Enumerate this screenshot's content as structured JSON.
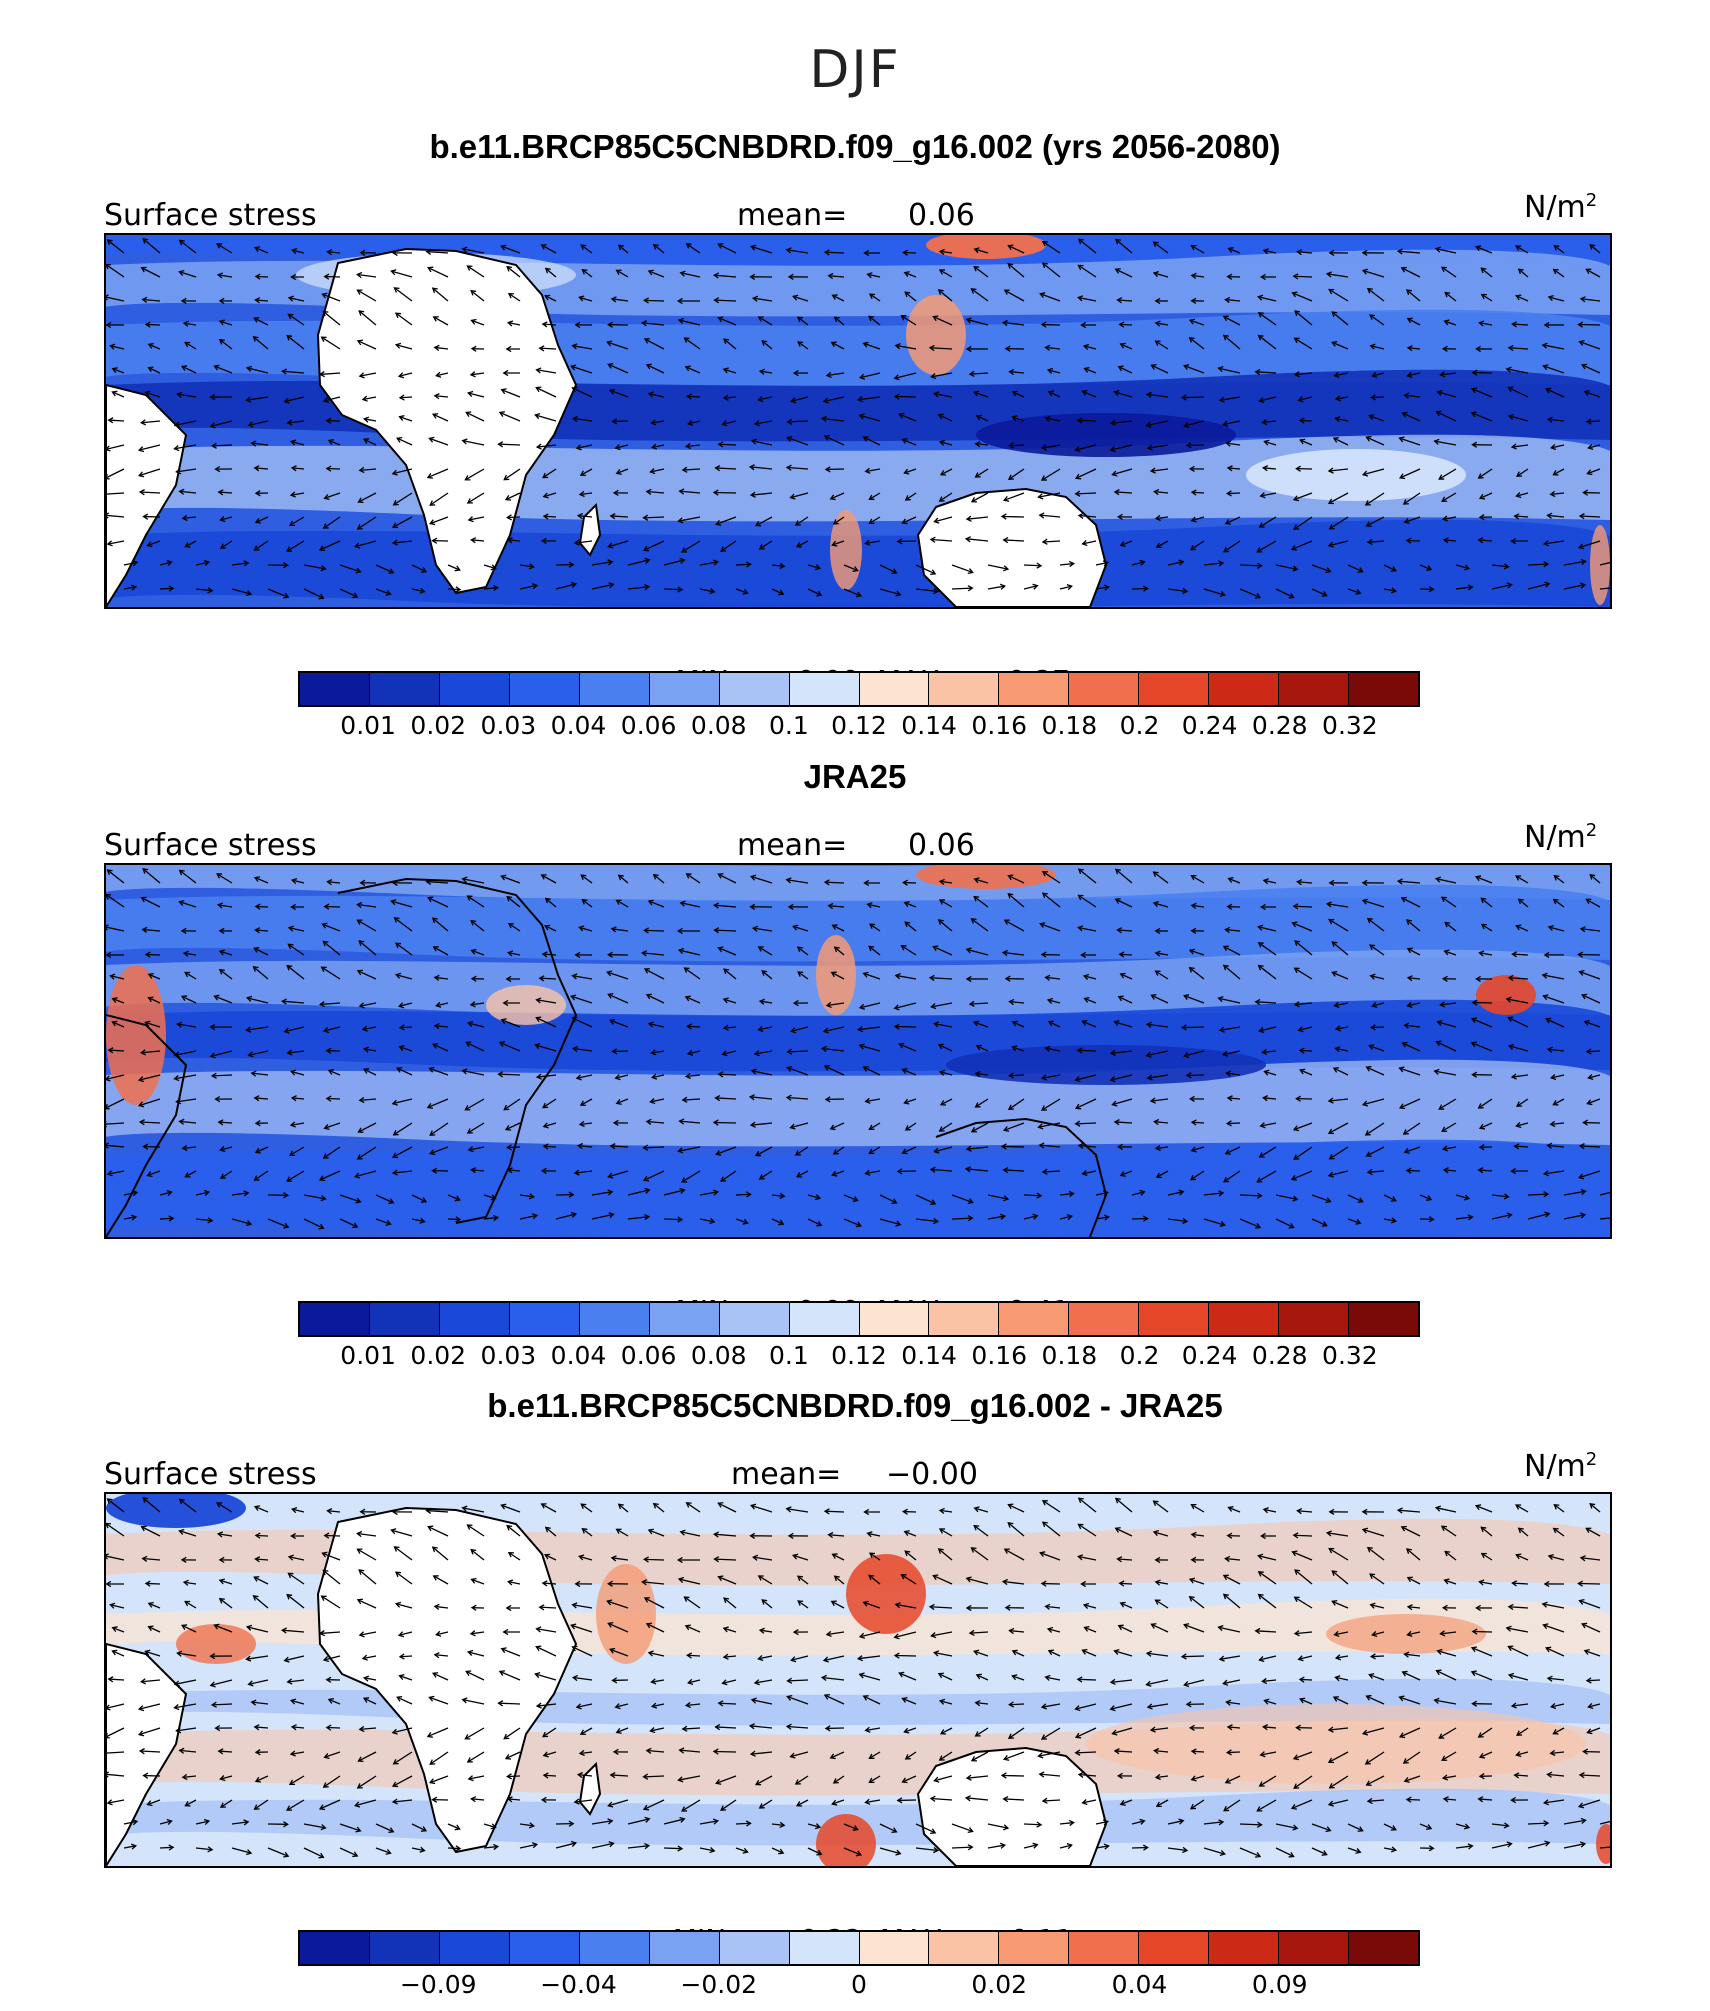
{
  "title": "DJF",
  "colorbar_colors": [
    "#0a1a9a",
    "#1232b8",
    "#1a48d8",
    "#2a5fec",
    "#4a7ff0",
    "#7aa2f2",
    "#a9c3f6",
    "#d4e4fb",
    "#fde4d0",
    "#fac3a6",
    "#f59a73",
    "#f0704e",
    "#e64628",
    "#cc2a16",
    "#a8170e",
    "#7a0a08"
  ],
  "panels": [
    {
      "title": "b.e11.BRCP85C5CNBDRD.f09_g16.002 (yrs 2056-2080)",
      "left_label": "Surface stress",
      "mean_label": "mean=",
      "mean_value": "0.06",
      "units_base": "N/m",
      "units_sup": "2",
      "min_label": "MIN =",
      "min_value": "0.00",
      "max_label": "MAX =",
      "max_value": "0.27",
      "tick_labels": [
        "0.01",
        "0.02",
        "0.03",
        "0.04",
        "0.06",
        "0.08",
        "0.1",
        "0.12",
        "0.14",
        "0.16",
        "0.18",
        "0.2",
        "0.24",
        "0.28",
        "0.32"
      ]
    },
    {
      "title": "JRA25",
      "left_label": "Surface stress",
      "mean_label": "mean=",
      "mean_value": "0.06",
      "units_base": "N/m",
      "units_sup": "2",
      "min_label": "MIN =",
      "min_value": "0.00",
      "max_label": "MAX =",
      "max_value": "0.41",
      "tick_labels": [
        "0.01",
        "0.02",
        "0.03",
        "0.04",
        "0.06",
        "0.08",
        "0.1",
        "0.12",
        "0.14",
        "0.16",
        "0.18",
        "0.2",
        "0.24",
        "0.28",
        "0.32"
      ]
    },
    {
      "title": "b.e11.BRCP85C5CNBDRD.f09_g16.002 - JRA25",
      "left_label": "Surface stress",
      "mean_label": "mean=",
      "mean_value": "−0.00",
      "units_base": "N/m",
      "units_sup": "2",
      "min_label": "MIN =",
      "min_value": "−0.22",
      "max_label": "MAX =",
      "max_value": "0.11",
      "tick_labels": [
        "−0.09",
        "−0.04",
        "−0.02",
        "0",
        "0.02",
        "0.04",
        "0.09"
      ]
    }
  ]
}
